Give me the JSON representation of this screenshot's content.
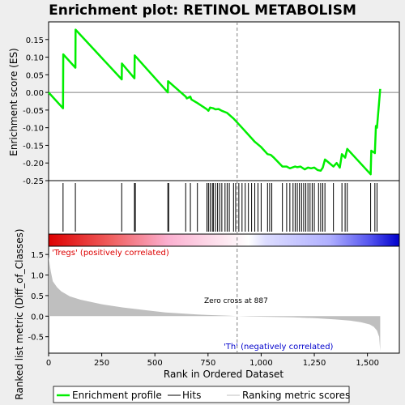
{
  "chart_data": {
    "type": "line",
    "title": "Enrichment plot: RETINOL METABOLISM",
    "x_axis": {
      "label": "Rank in Ordered Dataset",
      "range": [
        0,
        1650
      ],
      "ticks": [
        0,
        250,
        500,
        750,
        1000,
        1250,
        1500
      ],
      "tick_labels": [
        "0",
        "250",
        "500",
        "750",
        "1,000",
        "1,250",
        "1,500"
      ]
    },
    "top_panel": {
      "ylabel": "Enrichment score (ES)",
      "ylim": [
        -0.25,
        0.2
      ],
      "yticks": [
        -0.25,
        -0.2,
        -0.15,
        -0.1,
        -0.05,
        0.0,
        0.05,
        0.1,
        0.15
      ],
      "ytick_labels": [
        "-0.25",
        "-0.20",
        "-0.15",
        "-0.10",
        "-0.05",
        "0.00",
        "0.05",
        "0.10",
        "0.15"
      ],
      "series": [
        {
          "name": "Enrichment profile",
          "color": "#00ee00",
          "x": [
            0,
            68,
            69,
            126,
            127,
            344,
            345,
            404,
            405,
            561,
            562,
            645,
            650,
            667,
            672,
            700,
            745,
            752,
            760,
            775,
            785,
            800,
            815,
            840,
            870,
            910,
            940,
            970,
            1000,
            1030,
            1045,
            1060,
            1100,
            1120,
            1135,
            1160,
            1170,
            1185,
            1205,
            1220,
            1235,
            1250,
            1265,
            1280,
            1290,
            1300,
            1310,
            1340,
            1355,
            1370,
            1380,
            1395,
            1405,
            1515,
            1518,
            1535,
            1540,
            1545,
            1560
          ],
          "y": [
            0.0,
            -0.045,
            0.108,
            0.07,
            0.178,
            0.037,
            0.082,
            0.04,
            0.105,
            0.0,
            0.032,
            -0.012,
            -0.017,
            -0.012,
            -0.02,
            -0.03,
            -0.048,
            -0.052,
            -0.043,
            -0.045,
            -0.048,
            -0.047,
            -0.052,
            -0.058,
            -0.074,
            -0.1,
            -0.12,
            -0.14,
            -0.155,
            -0.175,
            -0.177,
            -0.185,
            -0.21,
            -0.21,
            -0.215,
            -0.21,
            -0.212,
            -0.21,
            -0.218,
            -0.213,
            -0.215,
            -0.213,
            -0.22,
            -0.222,
            -0.213,
            -0.19,
            -0.195,
            -0.21,
            -0.2,
            -0.213,
            -0.175,
            -0.185,
            -0.16,
            -0.232,
            -0.165,
            -0.172,
            -0.095,
            -0.1,
            0.01
          ]
        }
      ],
      "hits_label": "Hits",
      "hits": [
        68,
        126,
        344,
        404,
        408,
        561,
        565,
        645,
        667,
        700,
        745,
        752,
        760,
        770,
        775,
        785,
        795,
        805,
        815,
        830,
        840,
        850,
        870,
        880,
        895,
        910,
        925,
        940,
        955,
        970,
        985,
        1000,
        1030,
        1040,
        1050,
        1100,
        1120,
        1135,
        1150,
        1160,
        1170,
        1180,
        1190,
        1200,
        1210,
        1220,
        1230,
        1240,
        1250,
        1270,
        1280,
        1290,
        1300,
        1340,
        1380,
        1395,
        1405,
        1515,
        1535,
        1545
      ]
    },
    "bottom_panel": {
      "ylabel": "Ranked list metric (Diff_of_Classes)",
      "ylim": [
        -0.9,
        1.7
      ],
      "yticks": [
        -0.5,
        0.0,
        0.5,
        1.0,
        1.5
      ],
      "ytick_labels": [
        "-0.5",
        "0.0",
        "0.5",
        "1.0",
        "1.5"
      ],
      "series_name": "Ranking metric scores",
      "metric_x": [
        0,
        10,
        20,
        40,
        60,
        100,
        150,
        250,
        350,
        450,
        550,
        700,
        850,
        887,
        950,
        1050,
        1150,
        1250,
        1350,
        1420,
        1470,
        1510,
        1530,
        1545,
        1555,
        1560
      ],
      "metric_y": [
        1.45,
        1.1,
        0.85,
        0.7,
        0.6,
        0.48,
        0.4,
        0.29,
        0.21,
        0.15,
        0.09,
        0.04,
        0.01,
        0.0,
        -0.01,
        -0.02,
        -0.03,
        -0.05,
        -0.08,
        -0.11,
        -0.15,
        -0.2,
        -0.26,
        -0.35,
        -0.5,
        -0.85
      ],
      "zero_cross": 887,
      "zero_cross_label": "Zero cross at 887",
      "positive_label": "'Tregs' (positively correlated)",
      "negative_label": "'Th' (negatively correlated)"
    },
    "legend": {
      "placement": "bottom",
      "entries": [
        "Enrichment profile",
        "Hits",
        "Ranking metric scores"
      ]
    },
    "colors": {
      "profile": "#00ee00",
      "positive": "#dd0000",
      "negative": "#0000cc",
      "metric_fill": "#bfbfbf",
      "zero_line": "#808080"
    }
  }
}
